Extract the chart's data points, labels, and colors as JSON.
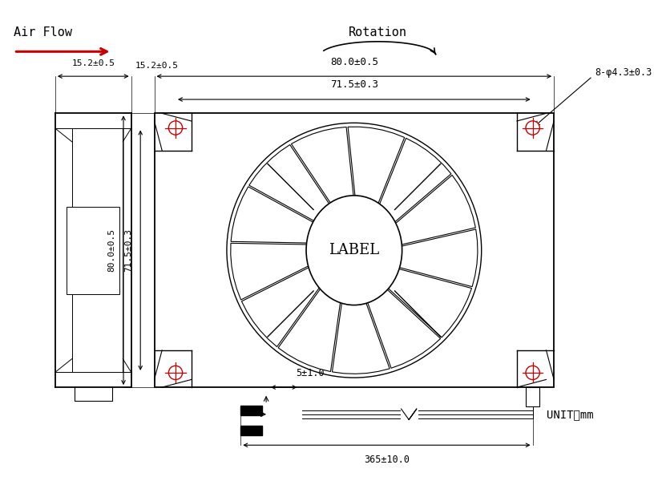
{
  "bg_color": "#ffffff",
  "line_color": "#000000",
  "red_color": "#cc0000",
  "label_text": "LABEL",
  "rotation_text": "Rotation",
  "airflow_text": "Air Flow",
  "dim_80h": "80.0±0.5",
  "dim_715h": "71.5±0.3",
  "dim_152": "15.2±0.5",
  "dim_80v": "80.0±0.5",
  "dim_715v": "71.5±0.3",
  "dim_hole": "8-φ4.3±0.3",
  "dim_5": "5±1.0",
  "dim_365": "365±10.0",
  "unit_text": "UNIT：mm",
  "n_blades": 13
}
